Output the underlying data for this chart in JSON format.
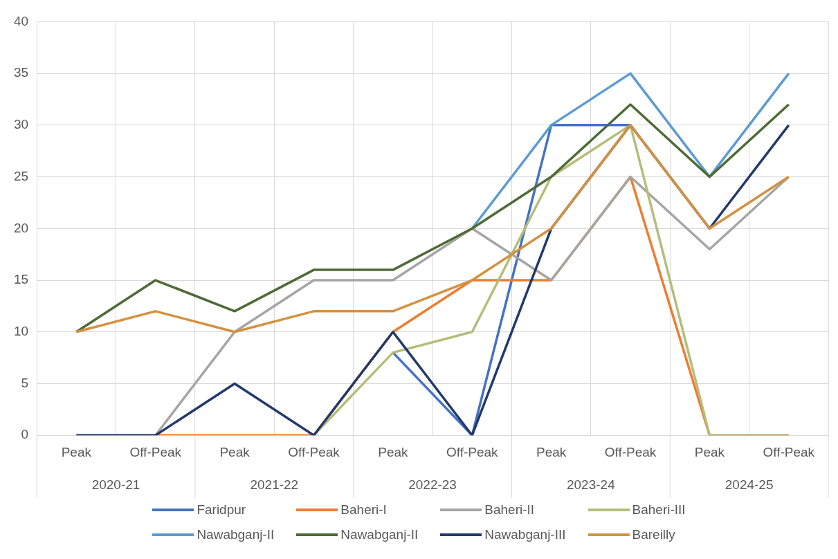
{
  "chart_data": {
    "type": "line",
    "categories": [
      "Peak",
      "Off-Peak",
      "Peak",
      "Off-Peak",
      "Peak",
      "Off-Peak",
      "Peak",
      "Off-Peak",
      "Peak",
      "Off-Peak"
    ],
    "annotations": [
      "2020-21",
      "2021-22",
      "2022-23",
      "2023-24",
      "2024-25"
    ],
    "series": [
      {
        "name": "Faridpur",
        "color": "#4472c4",
        "values": [
          null,
          null,
          null,
          null,
          8,
          0,
          30,
          30,
          null,
          null
        ]
      },
      {
        "name": "Baheri-I",
        "color": "#ed7d31",
        "values": [
          null,
          0,
          0,
          0,
          10,
          15,
          15,
          25,
          0,
          0
        ]
      },
      {
        "name": "Baheri-II",
        "color": "#a5a5a5",
        "values": [
          0,
          0,
          10,
          15,
          15,
          20,
          15,
          25,
          18,
          25
        ]
      },
      {
        "name": "Baheri-III",
        "color": "#b4bd7a",
        "values": [
          null,
          null,
          null,
          0,
          8,
          10,
          25,
          30,
          0,
          0
        ]
      },
      {
        "name": "Nawabganj-II",
        "color": "#5b9bd5",
        "values": [
          null,
          null,
          null,
          null,
          null,
          20,
          30,
          35,
          25,
          35
        ]
      },
      {
        "name": "Nawabganj-II",
        "color": "#4e6b35",
        "values": [
          10,
          15,
          12,
          16,
          16,
          20,
          25,
          32,
          25,
          32
        ]
      },
      {
        "name": "Nawabganj-III",
        "color": "#22396b",
        "values": [
          0,
          0,
          5,
          0,
          10,
          0,
          20,
          30,
          20,
          30
        ]
      },
      {
        "name": "Bareilly",
        "color": "#d4913f",
        "values": [
          10,
          12,
          10,
          12,
          12,
          15,
          20,
          30,
          20,
          25
        ]
      }
    ],
    "ylim": [
      0,
      40
    ],
    "yticks": [
      0,
      5,
      10,
      15,
      20,
      25,
      30,
      35,
      40
    ],
    "grid": true,
    "legend": "bottom",
    "marker": "none",
    "line_style": "solid"
  }
}
